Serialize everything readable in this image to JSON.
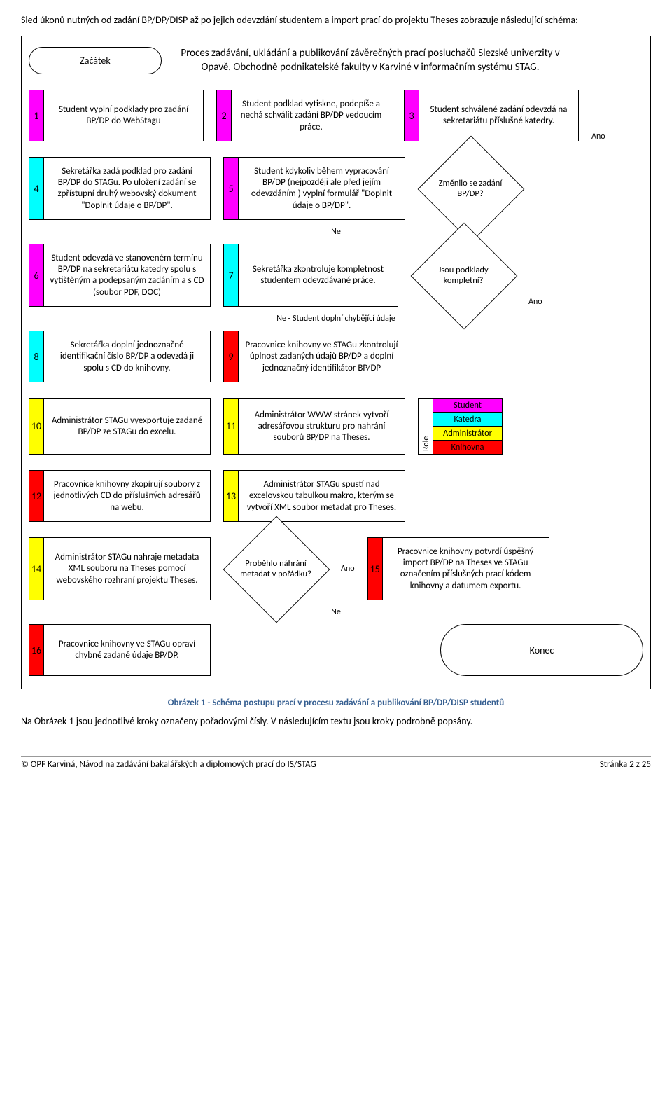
{
  "intro": "Sled úkonů nutných od zadání BP/DP/DISP až po jejich odevzdání studentem a import prací do projektu Theses zobrazuje následující schéma:",
  "colors": {
    "student": "#ff00ff",
    "katedra": "#00ffff",
    "admin": "#ffff00",
    "knihovna": "#ff0000",
    "white": "#ffffff",
    "black": "#000000"
  },
  "roles_label": "Role",
  "roles": [
    {
      "label": "Student",
      "color": "#ff00ff"
    },
    {
      "label": "Katedra",
      "color": "#00ffff"
    },
    {
      "label": "Administrátor",
      "color": "#ffff00"
    },
    {
      "label": "Knihovna",
      "color": "#ff0000"
    }
  ],
  "start": "Začátek",
  "end": "Konec",
  "header": "Proces zadávání, ukládání a publikování závěrečných prací posluchačů Slezské univerzity v Opavě, Obchodně podnikatelské fakulty v Karviné v informačním systému STAG.",
  "steps": {
    "1": {
      "num": "1",
      "color": "#ff00ff",
      "text": "Student vyplní podklady pro zadání BP/DP do WebStagu"
    },
    "2": {
      "num": "2",
      "color": "#ff00ff",
      "text": "Student podklad vytiskne, podepíše a nechá schválit zadání BP/DP vedoucím práce."
    },
    "3": {
      "num": "3",
      "color": "#ff00ff",
      "text": "Student schválené zadání odevzdá na sekretariátu příslušné katedry."
    },
    "4": {
      "num": "4",
      "color": "#00ffff",
      "text": "Sekretářka zadá podklad pro zadání BP/DP do STAGu. Po uložení zadání se zpřístupní druhý webovský dokument \"Doplnit údaje o BP/DP\"."
    },
    "5": {
      "num": "5",
      "color": "#ff00ff",
      "text": "Student kdykoliv během vypracování BP/DP (nejpozději ale před jejím odevzdáním ) vyplní formulář \"Doplnit údaje o BP/DP\"."
    },
    "6": {
      "num": "6",
      "color": "#ff00ff",
      "text": "Student odevzdá ve stanoveném termínu BP/DP na sekretariátu katedry spolu s vytištěným a podepsaným zadáním a s CD (soubor PDF, DOC)"
    },
    "7": {
      "num": "7",
      "color": "#00ffff",
      "text": "Sekretářka zkontroluje kompletnost studentem odevzdávané práce."
    },
    "8": {
      "num": "8",
      "color": "#00ffff",
      "text": "Sekretářka doplní jednoznačné identifikační číslo BP/DP a odevzdá ji spolu s CD do knihovny."
    },
    "9": {
      "num": "9",
      "color": "#ff0000",
      "text": "Pracovnice knihovny ve STAGu zkontrolují úplnost zadaných údajů BP/DP a doplní jednoznačný identifikátor BP/DP"
    },
    "10": {
      "num": "10",
      "color": "#ffff00",
      "text": "Administrátor STAGu vyexportuje zadané BP/DP ze STAGu do excelu."
    },
    "11": {
      "num": "11",
      "color": "#ffff00",
      "text": "Administrátor WWW stránek vytvoří adresářovou strukturu pro nahrání souborů BP/DP na Theses."
    },
    "12": {
      "num": "12",
      "color": "#ff0000",
      "text": "Pracovnice knihovny zkopírují soubory z jednotlivých CD do příslušných adresářů na webu."
    },
    "13": {
      "num": "13",
      "color": "#ffff00",
      "text": "Administrátor STAGu spustí nad excelovskou tabulkou makro, kterým se vytvoří XML soubor metadat pro Theses."
    },
    "14": {
      "num": "14",
      "color": "#ffff00",
      "text": "Administrátor STAGu nahraje metadata XML souboru na Theses pomocí webovského rozhraní projektu Theses."
    },
    "15": {
      "num": "15",
      "color": "#ff0000",
      "text": "Pracovnice knihovny potvrdí úspěšný import BP/DP na Theses ve STAGu označením příslušných prací kódem knihovny a datumem exportu."
    },
    "16": {
      "num": "16",
      "color": "#ff0000",
      "text": "Pracovnice knihovny ve STAGu opraví chybně zadané údaje BP/DP."
    }
  },
  "decisions": {
    "d5": "Změnilo se zadání BP/DP?",
    "d7": "Jsou podklady kompletní?",
    "d14": "Proběhlo náhrání metadat v pořádku?"
  },
  "edge_labels": {
    "ano": "Ano",
    "ne": "Ne",
    "ne_doplni": "Ne - Student doplní chybějící údaje"
  },
  "caption": "Obrázek 1 - Schéma postupu prací v procesu zadávání a publikování BP/DP/DISP studentů",
  "after": "Na Obrázek 1 jsou jednotlivé kroky označeny pořadovými čísly. V následujícím textu jsou kroky podrobně popsány.",
  "footer_left": "© OPF Karviná, Návod na zadávání bakalářských a diplomových prací do IS/STAG",
  "footer_right": "Stránka 2 z 25"
}
